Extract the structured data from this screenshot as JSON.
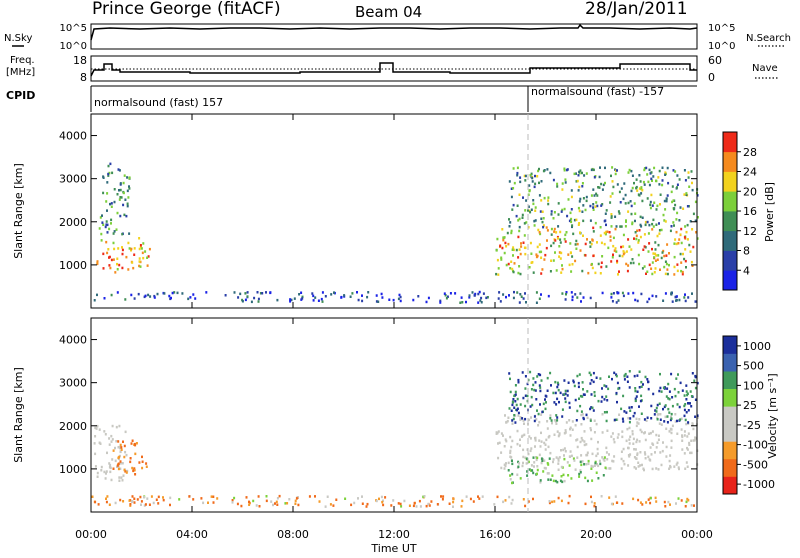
{
  "header": {
    "title": "Prince George (fitACF)",
    "beam": "Beam 04",
    "date": "28/Jan/2011"
  },
  "small_panels": {
    "nsky_label": "N.Sky",
    "nsky_ticks": [
      "10^5",
      "10^0"
    ],
    "nsearch_label": "N.Search",
    "nsearch_ticks": [
      "10^5",
      "10^0"
    ],
    "freq_label_1": "Freq.",
    "freq_label_2": "[MHz]",
    "freq_ticks": [
      "18",
      "8"
    ],
    "nave_label": "Nave",
    "nave_ticks": [
      "60",
      "0"
    ],
    "cpid_label": "CPID",
    "cpid_segments": [
      {
        "start_hour": 0.0,
        "text": "normalsound (fast) 157"
      },
      {
        "start_hour": 17.5,
        "text": "normalsound (fast) -157"
      }
    ]
  },
  "colors": {
    "power_scale": [
      "#1a22e6",
      "#2a3fa8",
      "#2f6a7a",
      "#3f8e55",
      "#7ccf3a",
      "#f2d21e",
      "#f58a1e",
      "#ee2a18"
    ],
    "velocity_scale": [
      "#e8231a",
      "#f06a1a",
      "#f59b2a",
      "#c9c9c4",
      "#c9c9c4",
      "#7cd23a",
      "#3f9a5a",
      "#3a62b0",
      "#1b2f9b"
    ],
    "ground_scatter": "#c8c8c2"
  },
  "chart_data": [
    {
      "type": "heatmap",
      "name": "power",
      "ylabel": "Slant Range [km]",
      "yticks": [
        "1000",
        "2000",
        "3000",
        "4000"
      ],
      "ylim": [
        0,
        4500
      ],
      "xlim_hours": [
        0,
        24
      ],
      "colorbar_label": "Power [dB]",
      "colorbar_ticks": [
        "4",
        "8",
        "12",
        "16",
        "20",
        "24",
        "28"
      ],
      "colorbar_range": [
        0,
        32
      ],
      "scatter_regions": [
        {
          "t0": 0.2,
          "t1": 2.3,
          "r0": 850,
          "r1": 1650,
          "level": 24
        },
        {
          "t0": 0.3,
          "t1": 1.5,
          "r0": 1700,
          "r1": 3400,
          "level": 12
        },
        {
          "t0": 16.0,
          "t1": 24.0,
          "r0": 800,
          "r1": 1900,
          "level": 22
        },
        {
          "t0": 16.5,
          "t1": 24.0,
          "r0": 1900,
          "r1": 3300,
          "level": 14
        },
        {
          "t0": 0.0,
          "t1": 24.0,
          "r0": 150,
          "r1": 400,
          "level": 6
        }
      ]
    },
    {
      "type": "heatmap",
      "name": "velocity",
      "ylabel": "Slant Range [km]",
      "yticks": [
        "1000",
        "2000",
        "3000",
        "4000"
      ],
      "ylim": [
        0,
        4500
      ],
      "xlim_hours": [
        0,
        24
      ],
      "colorbar_label": "Velocity [m s⁻¹]",
      "colorbar_ticks": [
        "1000",
        "500",
        "100",
        "25",
        "-25",
        "-100",
        "-500",
        "-1000"
      ],
      "colorbar_range": [
        -1000,
        1000
      ],
      "scatter_regions": [
        {
          "t0": 0.1,
          "t1": 1.4,
          "r0": 700,
          "r1": 2100,
          "level": 0
        },
        {
          "t0": 0.8,
          "t1": 2.3,
          "r0": 900,
          "r1": 1700,
          "level": -150
        },
        {
          "t0": 16.0,
          "t1": 24.0,
          "r0": 1000,
          "r1": 2300,
          "level": 0
        },
        {
          "t0": 16.5,
          "t1": 20.5,
          "r0": 700,
          "r1": 1300,
          "level": 100
        },
        {
          "t0": 16.5,
          "t1": 24.0,
          "r0": 2100,
          "r1": 3300,
          "level": 500
        },
        {
          "t0": 0.0,
          "t1": 24.0,
          "r0": 150,
          "r1": 400,
          "level": -80
        }
      ]
    }
  ],
  "x_axis": {
    "ticks": [
      "00:00",
      "04:00",
      "08:00",
      "12:00",
      "16:00",
      "20:00",
      "00:00"
    ],
    "label": "Time UT"
  }
}
